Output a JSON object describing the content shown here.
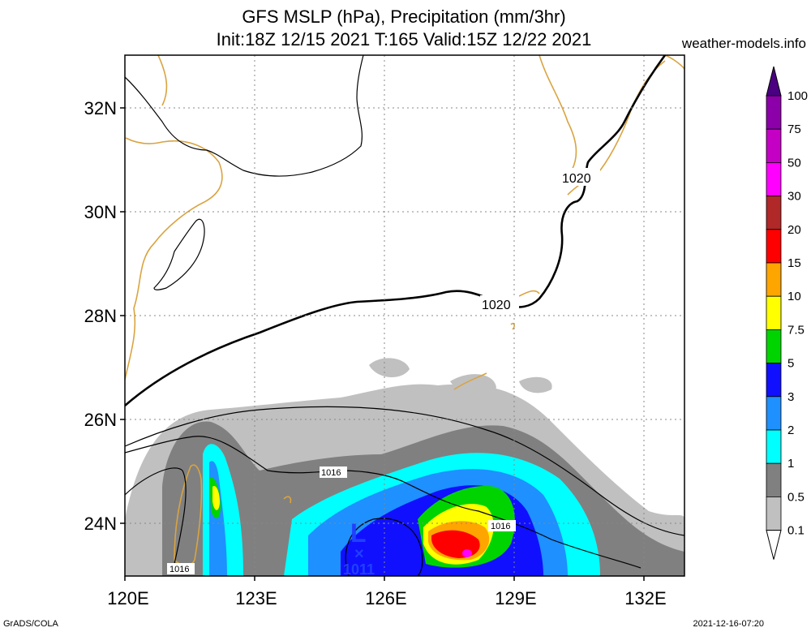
{
  "header": {
    "title_line1": "GFS MSLP (hPa), Precipitation (mm/3hr)",
    "title_line2": "Init:18Z 12/15 2021 T:165 Valid:15Z 12/22 2021",
    "site": "weather-models.info"
  },
  "footer": {
    "software": "GrADS/COLA",
    "timestamp": "2021-12-16-07:20"
  },
  "map": {
    "lat_ticks": [
      "32N",
      "30N",
      "28N",
      "26N",
      "24N"
    ],
    "lon_ticks": [
      "120E",
      "123E",
      "126E",
      "129E",
      "132E"
    ],
    "isobar_labels": [
      "1020",
      "1020",
      "1016",
      "1016",
      "1016"
    ],
    "low": {
      "symbol": "L",
      "marker": "×",
      "pressure": "1011"
    }
  },
  "colorbar": {
    "levels": [
      "100",
      "75",
      "50",
      "30",
      "20",
      "15",
      "10",
      "7.5",
      "5",
      "3",
      "2",
      "1",
      "0.5",
      "0.1"
    ],
    "colors": [
      "#8B00A8",
      "#C400C4",
      "#FF00FF",
      "#B02828",
      "#FF0000",
      "#FFA500",
      "#FFFF00",
      "#00D400",
      "#1010FF",
      "#1E90FF",
      "#00FFFF",
      "#808080",
      "#C0C0C0"
    ]
  }
}
